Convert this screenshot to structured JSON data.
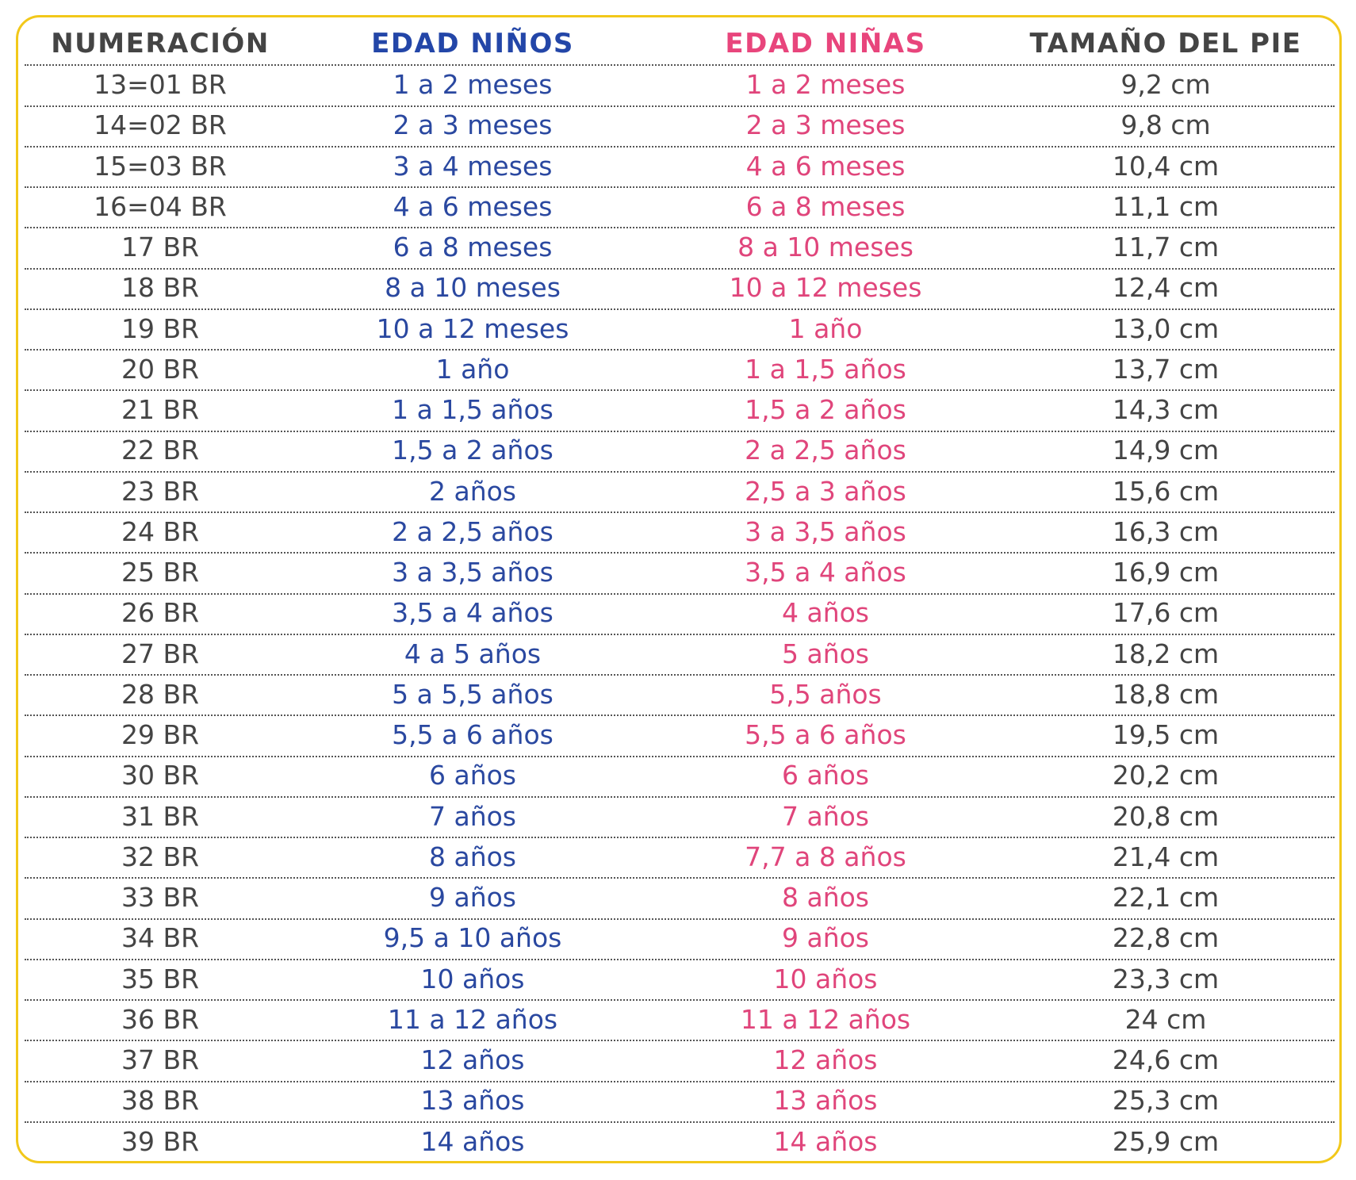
{
  "table": {
    "header": [
      "NUMERACIÓN",
      "EDAD NIÑOS",
      "EDAD NIÑAS",
      "TAMAÑO DEL PIE"
    ],
    "rows": [
      [
        "13=01 BR",
        "1 a 2 meses",
        "1 a 2 meses",
        "9,2 cm"
      ],
      [
        "14=02 BR",
        "2 a 3 meses",
        "2 a 3 meses",
        "9,8 cm"
      ],
      [
        "15=03 BR",
        "3 a 4 meses",
        "4 a 6 meses",
        "10,4 cm"
      ],
      [
        "16=04 BR",
        "4 a 6 meses",
        "6 a 8 meses",
        "11,1 cm"
      ],
      [
        "17 BR",
        "6 a 8 meses",
        "8 a 10 meses",
        "11,7 cm"
      ],
      [
        "18 BR",
        "8 a 10 meses",
        "10 a 12 meses",
        "12,4 cm"
      ],
      [
        "19 BR",
        "10 a 12 meses",
        "1 año",
        "13,0 cm"
      ],
      [
        "20 BR",
        "1 año",
        "1 a 1,5 años",
        "13,7 cm"
      ],
      [
        "21 BR",
        "1 a 1,5 años",
        "1,5 a 2 años",
        "14,3 cm"
      ],
      [
        "22 BR",
        "1,5 a 2 años",
        "2 a 2,5 años",
        "14,9 cm"
      ],
      [
        "23 BR",
        "2 años",
        "2,5 a 3 años",
        "15,6 cm"
      ],
      [
        "24 BR",
        "2 a 2,5 años",
        "3 a 3,5 años",
        "16,3 cm"
      ],
      [
        "25 BR",
        "3 a 3,5 años",
        "3,5 a 4 años",
        "16,9 cm"
      ],
      [
        "26 BR",
        "3,5 a 4 años",
        "4 años",
        "17,6 cm"
      ],
      [
        "27 BR",
        "4 a 5 años",
        "5 años",
        "18,2 cm"
      ],
      [
        "28 BR",
        "5 a 5,5 años",
        "5,5 años",
        "18,8 cm"
      ],
      [
        "29 BR",
        "5,5 a 6 años",
        "5,5 a 6 años",
        "19,5 cm"
      ],
      [
        "30 BR",
        "6 años",
        "6 años",
        "20,2 cm"
      ],
      [
        "31 BR",
        "7 años",
        "7 años",
        "20,8 cm"
      ],
      [
        "32 BR",
        "8 años",
        "7,7 a 8 años",
        "21,4 cm"
      ],
      [
        "33 BR",
        "9 años",
        "8 años",
        "22,1 cm"
      ],
      [
        "34 BR",
        "9,5 a 10 años",
        "9 años",
        "22,8 cm"
      ],
      [
        "35 BR",
        "10 años",
        "10 años",
        "23,3 cm"
      ],
      [
        "36 BR",
        "11 a 12 años",
        "11 a 12 años",
        "24 cm"
      ],
      [
        "37 BR",
        "12 años",
        "12 años",
        "24,6 cm"
      ],
      [
        "38 BR",
        "13 años",
        "13 años",
        "25,3 cm"
      ],
      [
        "39 BR",
        "14 años",
        "14 años",
        "25,9 cm"
      ]
    ]
  }
}
